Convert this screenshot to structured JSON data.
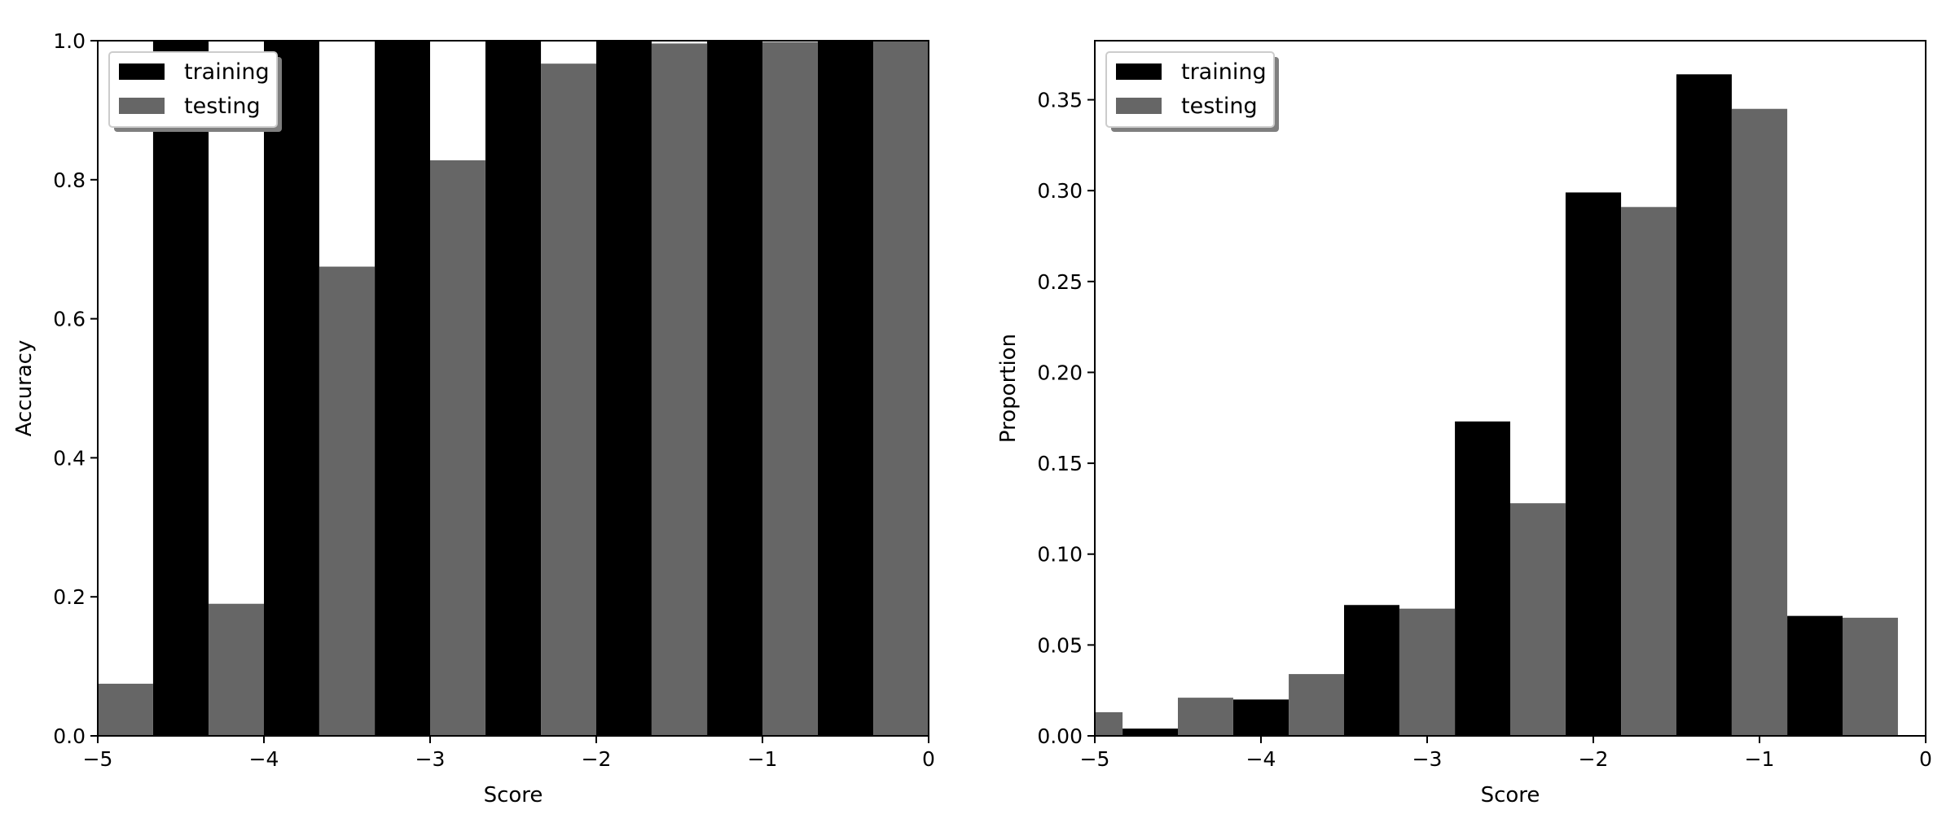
{
  "chart_data": [
    {
      "type": "bar",
      "xlabel": "Score",
      "ylabel": "Accuracy",
      "xlim": [
        -5,
        0
      ],
      "ylim": [
        0,
        1.0
      ],
      "xticks": [
        -5,
        -4,
        -3,
        -2,
        -1,
        0
      ],
      "xtick_labels": [
        "−5",
        "−4",
        "−3",
        "−2",
        "−1",
        "0"
      ],
      "yticks": [
        0,
        0.2,
        0.4,
        0.6,
        0.8,
        1.0
      ],
      "ytick_labels": [
        "0.0",
        "0.2",
        "0.4",
        "0.6",
        "0.8",
        "1.0"
      ],
      "bins": [
        [
          -5.0,
          -4.667
        ],
        [
          -4.667,
          -4.333
        ],
        [
          -4.333,
          -4.0
        ],
        [
          -4.0,
          -3.667
        ],
        [
          -3.667,
          -3.333
        ],
        [
          -3.333,
          -3.0
        ],
        [
          -3.0,
          -2.667
        ],
        [
          -2.667,
          -2.333
        ],
        [
          -2.333,
          -2.0
        ],
        [
          -2.0,
          -1.667
        ],
        [
          -1.667,
          -1.333
        ],
        [
          -1.333,
          -1.0
        ],
        [
          -1.0,
          -0.667
        ],
        [
          -0.667,
          -0.333
        ],
        [
          -0.333,
          0.0
        ]
      ],
      "legend_position": "top-left",
      "series": [
        {
          "name": "training",
          "color": "#000000",
          "values": [
            null,
            1.0,
            null,
            1.0,
            null,
            1.0,
            null,
            1.0,
            null,
            1.0,
            null,
            1.0,
            null,
            1.0,
            null
          ]
        },
        {
          "name": "testing",
          "color": "#666666",
          "values": [
            0.075,
            null,
            0.19,
            null,
            0.675,
            null,
            0.828,
            null,
            0.967,
            null,
            0.996,
            null,
            0.998,
            null,
            1.0
          ]
        }
      ]
    },
    {
      "type": "bar",
      "xlabel": "Score",
      "ylabel": "Proportion",
      "xlim": [
        -5,
        0
      ],
      "ylim": [
        0,
        0.3825
      ],
      "xticks": [
        -5,
        -4,
        -3,
        -2,
        -1,
        0
      ],
      "xtick_labels": [
        "−5",
        "−4",
        "−3",
        "−2",
        "−1",
        "0"
      ],
      "yticks": [
        0,
        0.05,
        0.1,
        0.15,
        0.2,
        0.25,
        0.3,
        0.35
      ],
      "ytick_labels": [
        "0.00",
        "0.05",
        "0.10",
        "0.15",
        "0.20",
        "0.25",
        "0.30",
        "0.35"
      ],
      "bins": [
        [
          -5.0,
          -4.833
        ],
        [
          -4.833,
          -4.5
        ],
        [
          -4.5,
          -4.167
        ],
        [
          -4.167,
          -3.833
        ],
        [
          -3.833,
          -3.5
        ],
        [
          -3.5,
          -3.167
        ],
        [
          -3.167,
          -2.833
        ],
        [
          -2.833,
          -2.5
        ],
        [
          -2.5,
          -2.167
        ],
        [
          -2.167,
          -1.833
        ],
        [
          -1.833,
          -1.5
        ],
        [
          -1.5,
          -1.167
        ],
        [
          -1.167,
          -0.833
        ],
        [
          -0.833,
          -0.5
        ],
        [
          -0.5,
          -0.167
        ]
      ],
      "legend_position": "top-left",
      "series": [
        {
          "name": "training",
          "color": "#000000",
          "values": [
            null,
            0.004,
            null,
            0.02,
            null,
            0.072,
            null,
            0.173,
            null,
            0.299,
            null,
            0.364,
            null,
            0.066,
            null
          ]
        },
        {
          "name": "testing",
          "color": "#666666",
          "values": [
            0.013,
            null,
            0.021,
            null,
            0.034,
            null,
            0.07,
            null,
            0.128,
            null,
            0.291,
            null,
            0.345,
            null,
            0.065
          ]
        }
      ]
    }
  ]
}
